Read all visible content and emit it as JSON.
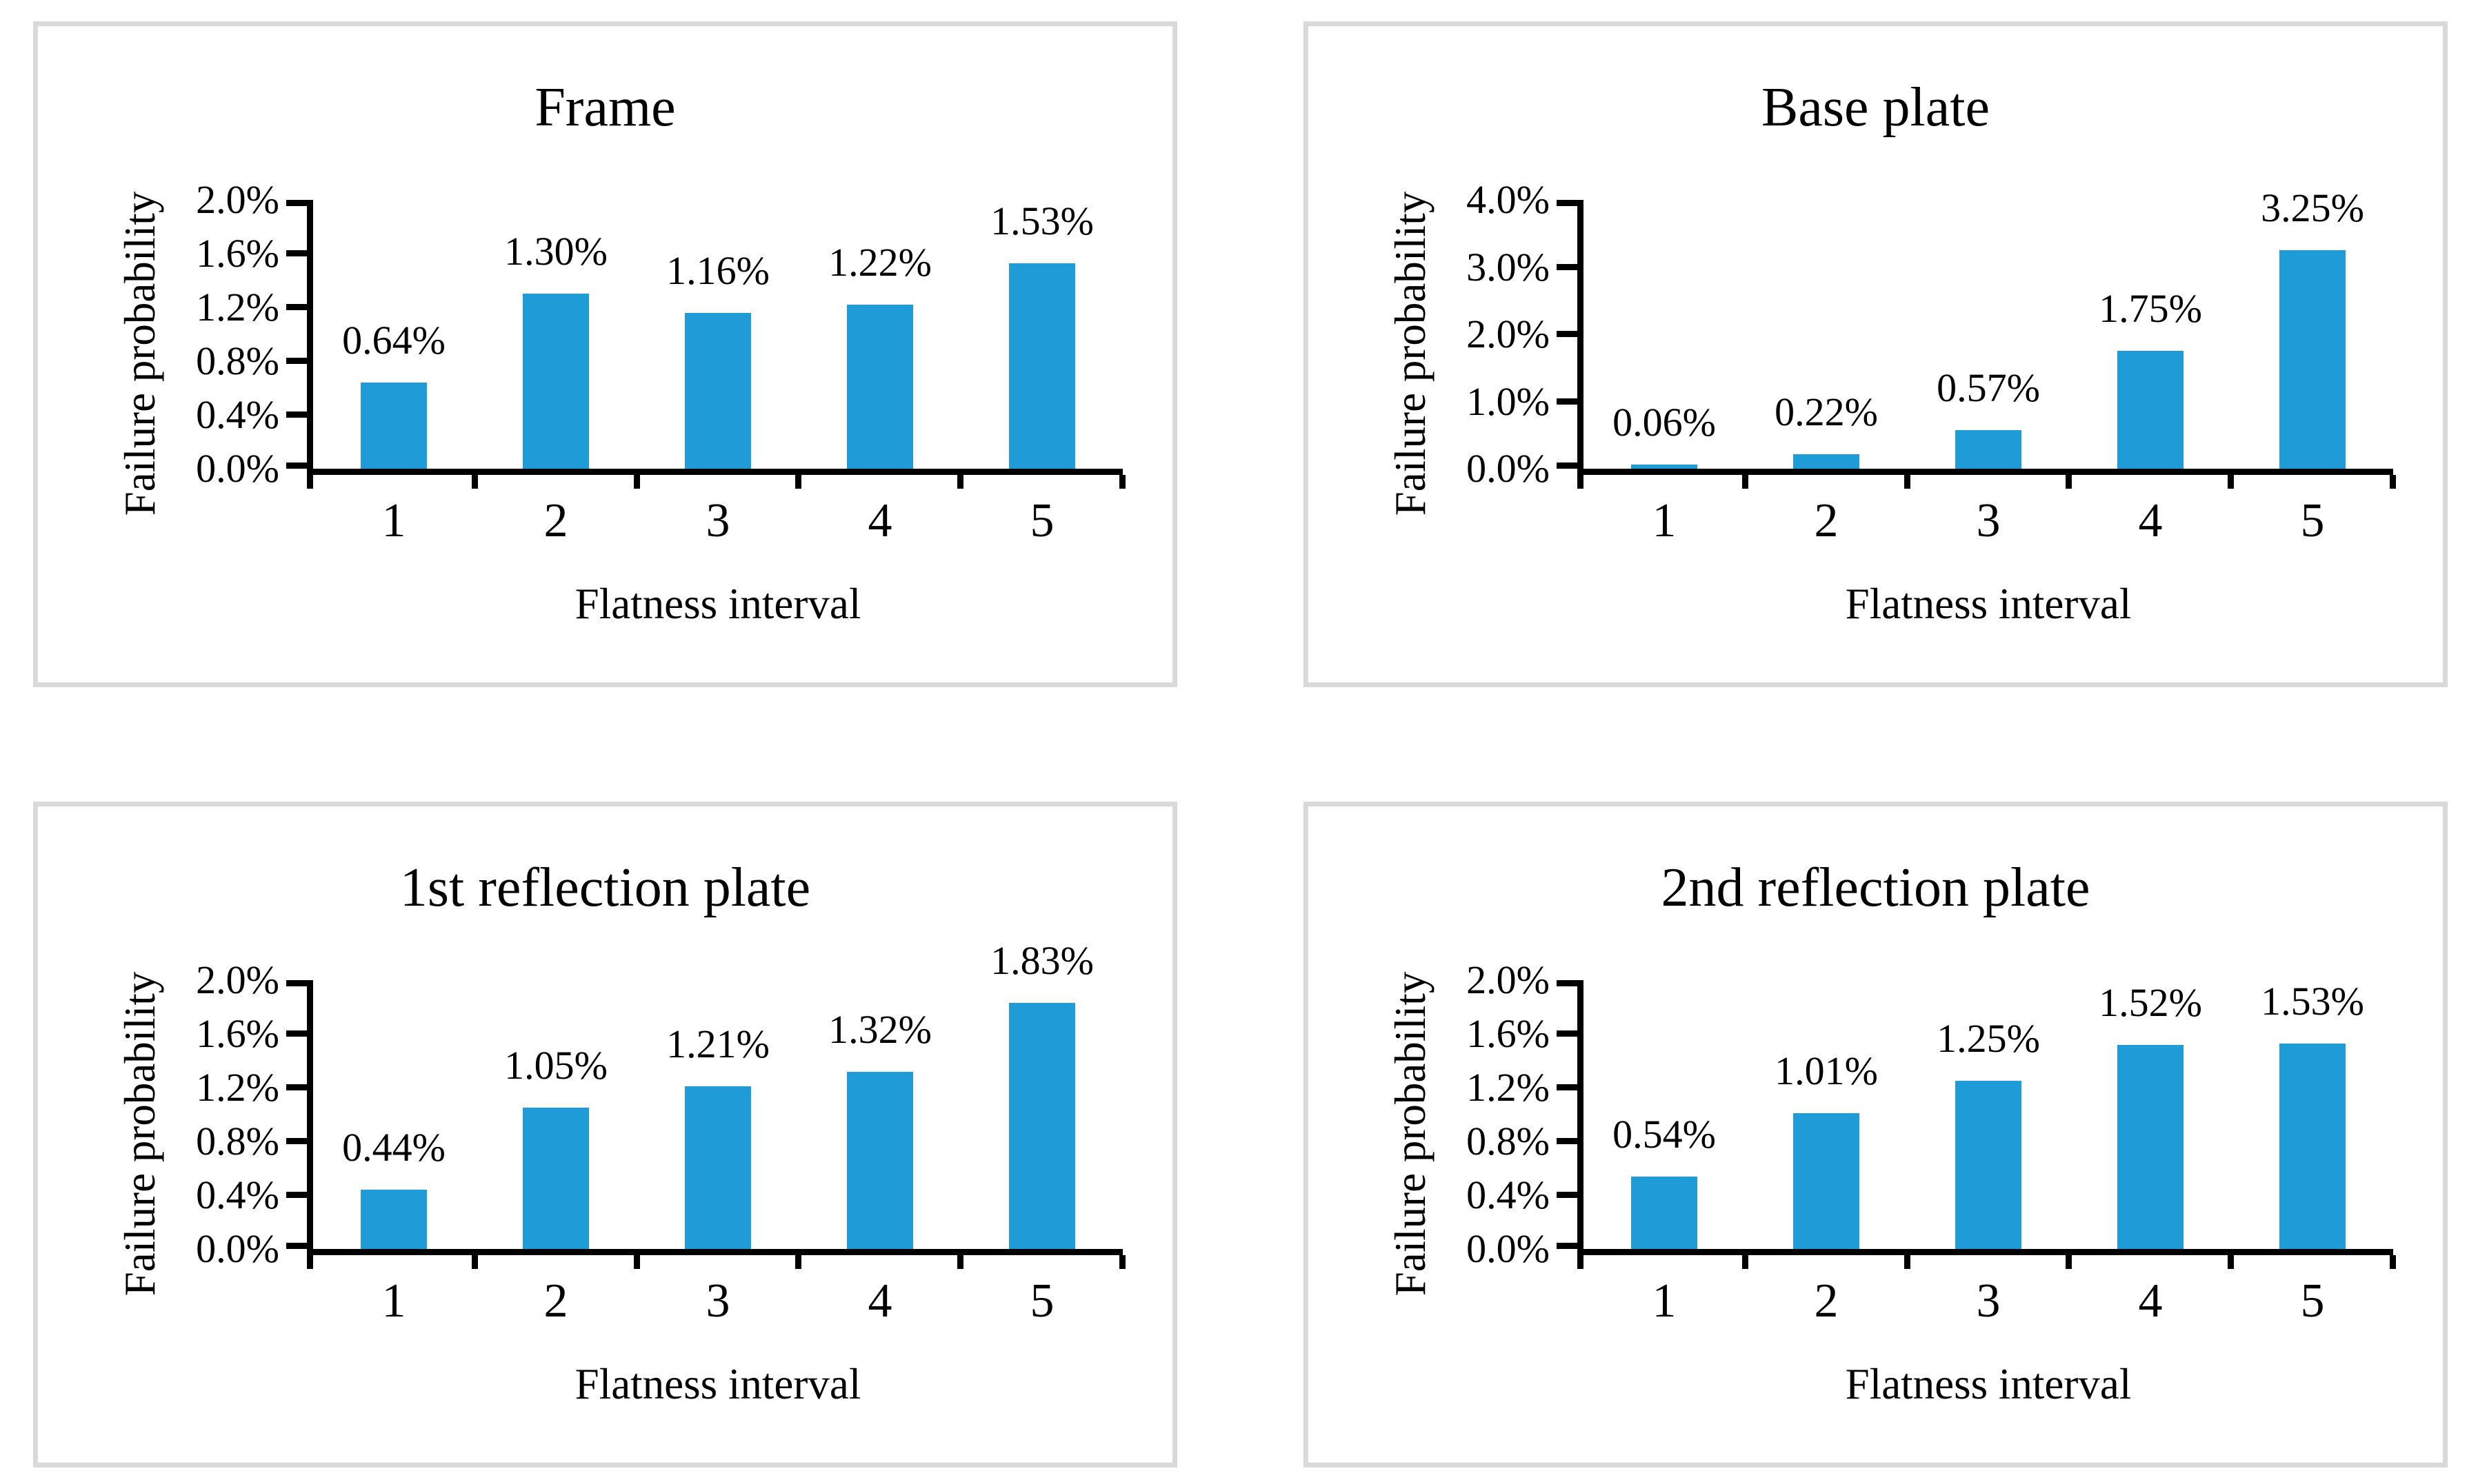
{
  "colors": {
    "bar_fill": "#1F9BD7",
    "axis": "#000000",
    "text": "#000000",
    "panel_border": "#D9D9D9",
    "page_background": "#FFFFFF"
  },
  "chart_data": [
    {
      "type": "bar",
      "title": "Frame",
      "xlabel": "Flatness interval",
      "ylabel": "Failure probability",
      "categories": [
        "1",
        "2",
        "3",
        "4",
        "5"
      ],
      "values": [
        0.64,
        1.3,
        1.16,
        1.22,
        1.53
      ],
      "value_labels": [
        "0.64%",
        "1.30%",
        "1.16%",
        "1.22%",
        "1.53%"
      ],
      "ylim": [
        0,
        2.0
      ],
      "ytick_labels": [
        "0.0%",
        "0.4%",
        "0.8%",
        "1.2%",
        "1.6%",
        "2.0%"
      ],
      "grid": false,
      "legend": false
    },
    {
      "type": "bar",
      "title": "Base plate",
      "xlabel": "Flatness interval",
      "ylabel": "Failure probability",
      "categories": [
        "1",
        "2",
        "3",
        "4",
        "5"
      ],
      "values": [
        0.06,
        0.22,
        0.57,
        1.75,
        3.25
      ],
      "value_labels": [
        "0.06%",
        "0.22%",
        "0.57%",
        "1.75%",
        "3.25%"
      ],
      "ylim": [
        0,
        4.0
      ],
      "ytick_labels": [
        "0.0%",
        "1.0%",
        "2.0%",
        "3.0%",
        "4.0%"
      ],
      "grid": false,
      "legend": false
    },
    {
      "type": "bar",
      "title": "1st reflection plate",
      "xlabel": "Flatness interval",
      "ylabel": "Failure probability",
      "categories": [
        "1",
        "2",
        "3",
        "4",
        "5"
      ],
      "values": [
        0.44,
        1.05,
        1.21,
        1.32,
        1.83
      ],
      "value_labels": [
        "0.44%",
        "1.05%",
        "1.21%",
        "1.32%",
        "1.83%"
      ],
      "ylim": [
        0,
        2.0
      ],
      "ytick_labels": [
        "0.0%",
        "0.4%",
        "0.8%",
        "1.2%",
        "1.6%",
        "2.0%"
      ],
      "grid": false,
      "legend": false
    },
    {
      "type": "bar",
      "title": "2nd reflection plate",
      "xlabel": "Flatness interval",
      "ylabel": "Failure probability",
      "categories": [
        "1",
        "2",
        "3",
        "4",
        "5"
      ],
      "values": [
        0.54,
        1.01,
        1.25,
        1.52,
        1.53
      ],
      "value_labels": [
        "0.54%",
        "1.01%",
        "1.25%",
        "1.52%",
        "1.53%"
      ],
      "ylim": [
        0,
        2.0
      ],
      "ytick_labels": [
        "0.0%",
        "0.4%",
        "0.8%",
        "1.2%",
        "1.6%",
        "2.0%"
      ],
      "grid": false,
      "legend": false
    }
  ]
}
